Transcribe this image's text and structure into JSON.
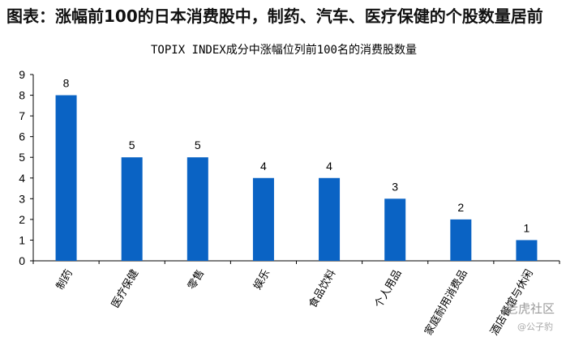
{
  "page_heading": "图表：涨幅前100的日本消费股中，制药、汽车、医疗保健的个股数量居前",
  "watermark": {
    "main": "老虎社区",
    "sub": "@公子豹"
  },
  "chart_data": {
    "type": "bar",
    "title": "TOPIX INDEX成分中涨幅位列前100名的消费股数量",
    "categories": [
      "制药",
      "医疗保健",
      "零售",
      "娱乐",
      "食品饮料",
      "个人用品",
      "家庭耐用消费品",
      "酒店餐馆与休闲"
    ],
    "values": [
      8,
      5,
      5,
      4,
      4,
      3,
      2,
      1
    ],
    "data_labels": [
      "8",
      "5",
      "5",
      "4",
      "4",
      "3",
      "2",
      "1"
    ],
    "ylim": [
      0,
      9
    ],
    "yticks": [
      "0",
      "1",
      "2",
      "3",
      "4",
      "5",
      "6",
      "7",
      "8",
      "9"
    ],
    "xlabel": "",
    "ylabel": "",
    "grid": false,
    "bar_color": "#0a63c4"
  }
}
